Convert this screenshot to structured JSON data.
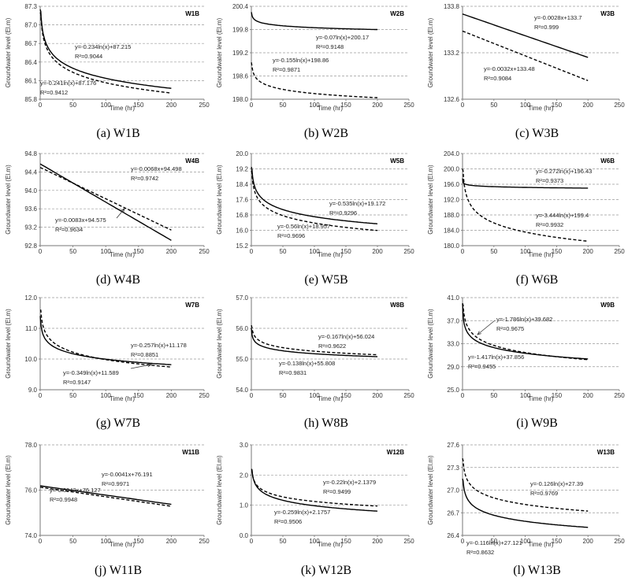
{
  "figure": {
    "x_axis_label": "Time (hr)",
    "y_axis_label": "Groundwater level (El.m)"
  },
  "chart_data": [
    {
      "type": "line",
      "caption": "(a) W1B",
      "title": "W1B",
      "xlim": [
        0,
        250
      ],
      "x_ticks": [
        "0",
        "50",
        "100",
        "150",
        "200",
        "250"
      ],
      "ylim": [
        85.8,
        87.3
      ],
      "y_ticks": [
        "85.8",
        "86.1",
        "86.4",
        "86.7",
        "87.0",
        "87.3"
      ],
      "series": [
        {
          "name": "solid",
          "style": "solid",
          "model": "log",
          "a": -0.234,
          "b": 87.215,
          "start": 87.25
        },
        {
          "name": "dashed",
          "style": "dashed",
          "model": "log",
          "a": -0.241,
          "b": 87.176,
          "start": 87.2
        }
      ],
      "annotations": [
        {
          "eq": "y=-0.234ln(x)+87.215",
          "r2": "R²=0.9044"
        },
        {
          "eq": "y=-0.241ln(x)+87.176",
          "r2": "R²=0.9412"
        }
      ]
    },
    {
      "type": "line",
      "caption": "(b) W2B",
      "title": "W2B",
      "xlim": [
        0,
        250
      ],
      "x_ticks": [
        "0",
        "50",
        "100",
        "150",
        "200",
        "250"
      ],
      "ylim": [
        198.0,
        200.4
      ],
      "y_ticks": [
        "198.0",
        "198.6",
        "199.2",
        "199.8",
        "200.4"
      ],
      "series": [
        {
          "name": "solid",
          "style": "solid",
          "model": "log",
          "a": -0.07,
          "b": 200.17,
          "start": 200.25
        },
        {
          "name": "dashed",
          "style": "dashed",
          "model": "log",
          "a": -0.155,
          "b": 198.86,
          "start": 198.95
        }
      ],
      "annotations": [
        {
          "eq": "y=-0.07ln(x)+200.17",
          "r2": "R²=0.9148"
        },
        {
          "eq": "y=-0.155ln(x)+198.86",
          "r2": "R²=0.9871"
        }
      ]
    },
    {
      "type": "line",
      "caption": "(c) W3B",
      "title": "W3B",
      "xlim": [
        0,
        250
      ],
      "x_ticks": [
        "0",
        "50",
        "100",
        "150",
        "200",
        "250"
      ],
      "ylim": [
        132.6,
        133.8
      ],
      "y_ticks": [
        "132.6",
        "133.2",
        "133.8"
      ],
      "series": [
        {
          "name": "solid",
          "style": "solid",
          "model": "linear",
          "a": -0.0028,
          "b": 133.7
        },
        {
          "name": "dashed",
          "style": "dashed",
          "model": "linear",
          "a": -0.0032,
          "b": 133.48
        }
      ],
      "annotations": [
        {
          "eq": "y=-0.0028x+133.7",
          "r2": "R²=0.999"
        },
        {
          "eq": "y=-0.0032x+133.48",
          "r2": "R²=0.9084"
        }
      ]
    },
    {
      "type": "line",
      "caption": "(d) W4B",
      "title": "W4B",
      "xlim": [
        0,
        250
      ],
      "x_ticks": [
        "0",
        "50",
        "100",
        "150",
        "200",
        "250"
      ],
      "ylim": [
        92.8,
        94.8
      ],
      "y_ticks": [
        "92.8",
        "93.2",
        "93.6",
        "94.0",
        "94.4",
        "94.8"
      ],
      "series": [
        {
          "name": "solid",
          "style": "solid",
          "model": "linear",
          "a": -0.0083,
          "b": 94.575
        },
        {
          "name": "dashed",
          "style": "dashed",
          "model": "linear",
          "a": -0.0068,
          "b": 94.498
        }
      ],
      "annotations": [
        {
          "eq": "y=-0.0068x+94.498",
          "r2": "R²=0.9742"
        },
        {
          "eq": "y=-0.0083x+94.575",
          "r2": "R²=0.9634"
        }
      ]
    },
    {
      "type": "line",
      "caption": "(e) W5B",
      "title": "W5B",
      "xlim": [
        0,
        250
      ],
      "x_ticks": [
        "0",
        "50",
        "100",
        "150",
        "200",
        "250"
      ],
      "ylim": [
        15.2,
        20.0
      ],
      "y_ticks": [
        "15.2",
        "16.0",
        "16.8",
        "17.6",
        "18.4",
        "19.2",
        "20.0"
      ],
      "series": [
        {
          "name": "solid",
          "style": "solid",
          "model": "log",
          "a": -0.535,
          "b": 19.172,
          "start": 19.3
        },
        {
          "name": "dashed",
          "style": "dashed",
          "model": "log",
          "a": -0.56,
          "b": 18.957,
          "start": 19.1
        }
      ],
      "annotations": [
        {
          "eq": "y=-0.535ln(x)+19.172",
          "r2": "R²=0.9296"
        },
        {
          "eq": "y=-0.56ln(x)+18.957",
          "r2": "R²=0.9696"
        }
      ]
    },
    {
      "type": "line",
      "caption": "(f) W6B",
      "title": "W6B",
      "xlim": [
        0,
        250
      ],
      "x_ticks": [
        "0",
        "50",
        "100",
        "150",
        "200",
        "250"
      ],
      "ylim": [
        180.0,
        204.0
      ],
      "y_ticks": [
        "180.0",
        "184.0",
        "188.0",
        "192.0",
        "196.0",
        "200.0",
        "204.0"
      ],
      "series": [
        {
          "name": "solid",
          "style": "solid",
          "model": "log",
          "a": -0.272,
          "b": 196.43,
          "start": 197.5
        },
        {
          "name": "dashed",
          "style": "dashed",
          "model": "log",
          "a": -3.444,
          "b": 199.4,
          "start": 200.0
        }
      ],
      "annotations": [
        {
          "eq": "y=-0.272ln(x)+196.43",
          "r2": "R²=0.9373"
        },
        {
          "eq": "y=-3.444ln(x)+199.4",
          "r2": "R²=0.9932"
        }
      ]
    },
    {
      "type": "line",
      "caption": "(g) W7B",
      "title": "W7B",
      "xlim": [
        0,
        250
      ],
      "x_ticks": [
        "0",
        "50",
        "100",
        "150",
        "200",
        "250"
      ],
      "ylim": [
        9.0,
        12.0
      ],
      "y_ticks": [
        "9.0",
        "10.0",
        "11.0",
        "12.0"
      ],
      "series": [
        {
          "name": "solid",
          "style": "solid",
          "model": "log",
          "a": -0.257,
          "b": 11.178,
          "start": 11.4
        },
        {
          "name": "dashed",
          "style": "dashed",
          "model": "log",
          "a": -0.349,
          "b": 11.589,
          "start": 11.6
        }
      ],
      "annotations": [
        {
          "eq": "y=-0.257ln(x)+11.178",
          "r2": "R²=0.8851"
        },
        {
          "eq": "y=-0.349ln(x)+11.589",
          "r2": "R²=0.9147"
        }
      ]
    },
    {
      "type": "line",
      "caption": "(h) W8B",
      "title": "W8B",
      "xlim": [
        0,
        250
      ],
      "x_ticks": [
        "0",
        "50",
        "100",
        "150",
        "200",
        "250"
      ],
      "ylim": [
        54.0,
        57.0
      ],
      "y_ticks": [
        "54.0",
        "55.0",
        "56.0",
        "57.0"
      ],
      "series": [
        {
          "name": "solid",
          "style": "solid",
          "model": "log",
          "a": -0.138,
          "b": 55.808,
          "start": 56.0
        },
        {
          "name": "dashed",
          "style": "dashed",
          "model": "log",
          "a": -0.167,
          "b": 56.024,
          "start": 56.1
        }
      ],
      "annotations": [
        {
          "eq": "y=-0.167ln(x)+56.024",
          "r2": "R²=0.9622"
        },
        {
          "eq": "y=-0.138ln(x)+55.808",
          "r2": "R²=0.9831"
        }
      ]
    },
    {
      "type": "line",
      "caption": "(i) W9B",
      "title": "W9B",
      "xlim": [
        0,
        250
      ],
      "x_ticks": [
        "0",
        "50",
        "100",
        "150",
        "200",
        "250"
      ],
      "ylim": [
        25.0,
        41.0
      ],
      "y_ticks": [
        "25.0",
        "29.0",
        "33.0",
        "37.0",
        "41.0"
      ],
      "series": [
        {
          "name": "solid",
          "style": "solid",
          "model": "log",
          "a": -1.417,
          "b": 37.856,
          "start": 40.0
        },
        {
          "name": "dashed",
          "style": "dashed",
          "model": "log",
          "a": -1.786,
          "b": 39.682,
          "start": 40.0
        }
      ],
      "annotations": [
        {
          "eq": "y=-1.786ln(x)+39.682",
          "r2": "R²=0.9675"
        },
        {
          "eq": "y=-1.417ln(x)+37.856",
          "r2": "R²=0.9455"
        }
      ]
    },
    {
      "type": "line",
      "caption": "(j) W11B",
      "title": "W11B",
      "xlim": [
        0,
        250
      ],
      "x_ticks": [
        "0",
        "50",
        "100",
        "150",
        "200",
        "250"
      ],
      "ylim": [
        74.0,
        78.0
      ],
      "y_ticks": [
        "74.0",
        "76.0",
        "78.0"
      ],
      "series": [
        {
          "name": "solid",
          "style": "solid",
          "model": "linear",
          "a": -0.0041,
          "b": 76.191
        },
        {
          "name": "dashed",
          "style": "dashed",
          "model": "linear",
          "a": -0.0042,
          "b": 76.127
        }
      ],
      "annotations": [
        {
          "eq": "y=-0.0041x+76.191",
          "r2": "R²=0.9971"
        },
        {
          "eq": "y=-0.0042x+76.127",
          "r2": "R²=0.9948"
        }
      ]
    },
    {
      "type": "line",
      "caption": "(k) W12B",
      "title": "W12B",
      "xlim": [
        0,
        250
      ],
      "x_ticks": [
        "0",
        "50",
        "100",
        "150",
        "200",
        "250"
      ],
      "ylim": [
        0.0,
        3.0
      ],
      "y_ticks": [
        "0.0",
        "1.0",
        "2.0",
        "3.0"
      ],
      "series": [
        {
          "name": "solid",
          "style": "solid",
          "model": "log",
          "a": -0.259,
          "b": 2.1757,
          "start": 2.2
        },
        {
          "name": "dashed",
          "style": "dashed",
          "model": "log",
          "a": -0.22,
          "b": 2.1379,
          "start": 2.15
        }
      ],
      "annotations": [
        {
          "eq": "y=-0.22ln(x)+2.1379",
          "r2": "R²=0.9499"
        },
        {
          "eq": "y=-0.259ln(x)+2.1757",
          "r2": "R²=0.9506"
        }
      ]
    },
    {
      "type": "line",
      "caption": "(l) W13B",
      "title": "W13B",
      "xlim": [
        0,
        250
      ],
      "x_ticks": [
        "0",
        "50",
        "100",
        "150",
        "200",
        "250"
      ],
      "ylim": [
        26.4,
        27.6
      ],
      "y_ticks": [
        "26.4",
        "26.7",
        "27.0",
        "27.3",
        "27.6"
      ],
      "series": [
        {
          "name": "solid",
          "style": "solid",
          "model": "log",
          "a": -0.116,
          "b": 27.121,
          "start": 27.15
        },
        {
          "name": "dashed",
          "style": "dashed",
          "model": "log",
          "a": -0.126,
          "b": 27.39,
          "start": 27.42
        }
      ],
      "annotations": [
        {
          "eq": "y=-0.126ln(x)+27.39",
          "r2": "R²=0.9769"
        },
        {
          "eq": "y=-0.116ln(x)+27.121",
          "r2": "R²=0.8632"
        }
      ]
    }
  ]
}
